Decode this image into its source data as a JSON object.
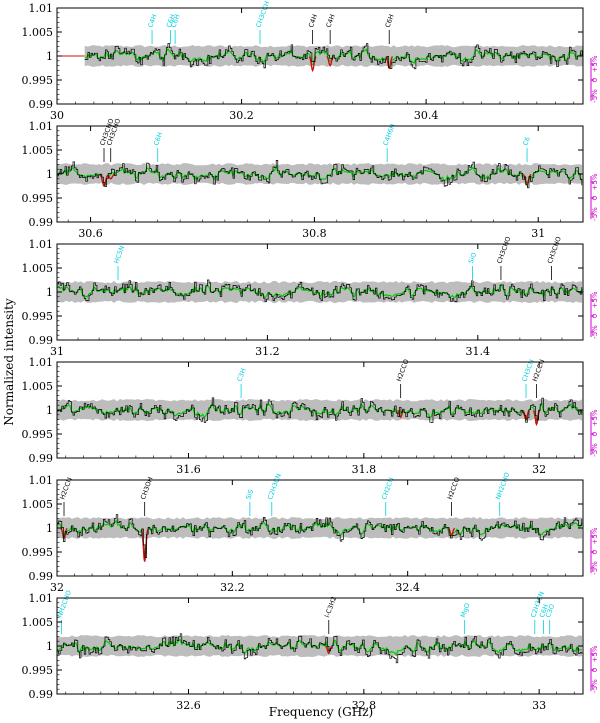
{
  "chart_data": {
    "type": "line",
    "xlabel": "Frequency (GHz)",
    "ylabel": "Normalized intensity",
    "ylim": [
      0.99,
      1.01
    ],
    "y_ticks": [
      "0.99",
      "0.995",
      "1",
      "1.005",
      "1.01"
    ],
    "right_axis_ticks": [
      "+5%",
      "0",
      "-5%"
    ],
    "colors": {
      "observed": "#000000",
      "model_all": "#00cc00",
      "model_emission": "#00dd00",
      "model_absorption": "#d01010",
      "noise_band": "#bdbdbd",
      "label_detected": "#000000",
      "label_tentative": "#00d0e0",
      "residual_axis": "#d000d0"
    },
    "series": [
      {
        "values": "observed spectrum (black histogram)"
      },
      {
        "values": "model spectrum (green / red)"
      }
    ],
    "panels": [
      {
        "xlim": [
          30.0,
          30.57
        ],
        "x_ticks": [
          "30",
          "30.2",
          "30.4"
        ],
        "x_tick_values": [
          30.0,
          30.2,
          30.4
        ],
        "data_start": 30.03,
        "red_line_end": 30.03,
        "lines": [
          {
            "label": "C4H",
            "freq": 30.103,
            "color": "cyan",
            "depth": 0.0005
          },
          {
            "label": "C6H",
            "freq": 30.123,
            "color": "cyan",
            "depth": 0.0
          },
          {
            "label": "C6H",
            "freq": 30.128,
            "color": "cyan",
            "depth": 0.0
          },
          {
            "label": "CH3CCH",
            "freq": 30.22,
            "color": "cyan",
            "depth": 0.0
          },
          {
            "label": "C4H",
            "freq": 30.277,
            "color": "black",
            "depth": -0.003
          },
          {
            "label": "C4H",
            "freq": 30.296,
            "color": "black",
            "depth": -0.002
          },
          {
            "label": "C6H",
            "freq": 30.36,
            "color": "black",
            "depth": -0.0025
          }
        ]
      },
      {
        "xlim": [
          30.57,
          31.04
        ],
        "x_ticks": [
          "30.6",
          "30.8",
          "31"
        ],
        "x_tick_values": [
          30.6,
          30.8,
          31.0
        ],
        "data_start": 30.57,
        "lines": [
          {
            "label": "CH3CHO",
            "freq": 30.612,
            "color": "black",
            "depth": -0.0025
          },
          {
            "label": "CH3CHO",
            "freq": 30.618,
            "color": "black",
            "depth": -0.001
          },
          {
            "label": "C6H",
            "freq": 30.66,
            "color": "cyan",
            "depth": 0.0
          },
          {
            "label": "C4H6H",
            "freq": 30.865,
            "color": "cyan",
            "depth": 0.0
          },
          {
            "label": "C6",
            "freq": 30.99,
            "color": "cyan",
            "depth": -0.002
          }
        ]
      },
      {
        "xlim": [
          31.0,
          31.5
        ],
        "x_ticks": [
          "31",
          "31.2",
          "31.4"
        ],
        "x_tick_values": [
          31.0,
          31.2,
          31.4
        ],
        "data_start": 31.0,
        "lines": [
          {
            "label": "HC5N",
            "freq": 31.058,
            "color": "cyan",
            "depth": 0.0
          },
          {
            "label": "SiO",
            "freq": 31.395,
            "color": "cyan",
            "depth": 0.0
          },
          {
            "label": "CH3CHO",
            "freq": 31.422,
            "color": "black",
            "depth": 0.0015
          },
          {
            "label": "CH3CHO",
            "freq": 31.47,
            "color": "black",
            "depth": 0.001
          }
        ]
      },
      {
        "xlim": [
          31.45,
          32.05
        ],
        "x_ticks": [
          "31.6",
          "31.8",
          "32"
        ],
        "x_tick_values": [
          31.6,
          31.8,
          32.0
        ],
        "data_start": 31.45,
        "lines": [
          {
            "label": "C3H",
            "freq": 31.66,
            "color": "cyan",
            "depth": 0.0
          },
          {
            "label": "H2CCO",
            "freq": 31.842,
            "color": "black",
            "depth": -0.0015
          },
          {
            "label": "CH3CN",
            "freq": 31.985,
            "color": "cyan",
            "depth": -0.002
          },
          {
            "label": "H2CCN",
            "freq": 31.997,
            "color": "black",
            "depth": -0.003
          }
        ]
      },
      {
        "xlim": [
          32.0,
          32.6
        ],
        "x_ticks": [
          "32",
          "32.2",
          "32.4"
        ],
        "x_tick_values": [
          32.0,
          32.2,
          32.4
        ],
        "data_start": 32.0,
        "lines": [
          {
            "label": "H2CCN",
            "freq": 32.008,
            "color": "black",
            "depth": -0.002
          },
          {
            "label": "CH3OH",
            "freq": 32.1,
            "color": "black",
            "depth": -0.007
          },
          {
            "label": "SiS",
            "freq": 32.22,
            "color": "cyan",
            "depth": 0.0
          },
          {
            "label": "C2H3CN",
            "freq": 32.245,
            "color": "cyan",
            "depth": 0.0
          },
          {
            "label": "CH2CN",
            "freq": 32.375,
            "color": "cyan",
            "depth": 0.0
          },
          {
            "label": "H2CCO",
            "freq": 32.45,
            "color": "black",
            "depth": -0.0015
          },
          {
            "label": "NH2CHO",
            "freq": 32.505,
            "color": "cyan",
            "depth": 0.0
          }
        ]
      },
      {
        "xlim": [
          32.45,
          33.05
        ],
        "x_ticks": [
          "32.6",
          "32.8",
          "33"
        ],
        "x_tick_values": [
          32.6,
          32.8,
          33.0
        ],
        "data_start": 32.45,
        "lines": [
          {
            "label": "NH2CHO",
            "freq": 32.455,
            "color": "cyan",
            "depth": 0.0
          },
          {
            "label": "l-C3H2",
            "freq": 32.76,
            "color": "black",
            "depth": -0.0015
          },
          {
            "label": "MgO",
            "freq": 32.915,
            "color": "cyan",
            "depth": 0.0
          },
          {
            "label": "C2H3CN",
            "freq": 32.995,
            "color": "cyan",
            "depth": 0.0
          },
          {
            "label": "C6H",
            "freq": 33.005,
            "color": "cyan",
            "depth": 0.0
          },
          {
            "label": "C3O",
            "freq": 33.012,
            "color": "cyan",
            "depth": 0.0
          }
        ]
      }
    ]
  }
}
